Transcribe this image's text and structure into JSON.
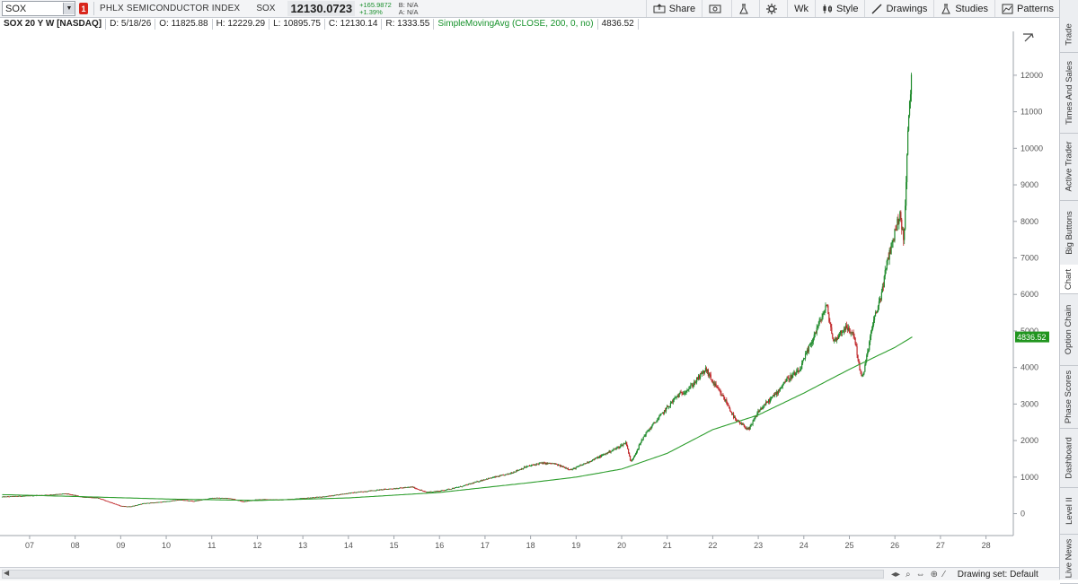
{
  "toolbar": {
    "symbol": "SOX",
    "alert_count": "1",
    "description": "PHLX SEMICONDUCTOR INDEX",
    "symbol_label": "SOX",
    "last_price": "12130.0723",
    "net_change": "+165.9872",
    "pct_change": "+1.39%",
    "bid": "B: N/A",
    "ask": "A: N/A",
    "share_label": "Share",
    "aggregation": "Wk",
    "style_label": "Style",
    "drawings_label": "Drawings",
    "studies_label": "Studies",
    "patterns_label": "Patterns"
  },
  "info_bar": {
    "title": "SOX 20 Y W [NASDAQ]",
    "date": "D: 5/18/26",
    "open": "O: 11825.88",
    "high": "H: 12229.29",
    "low": "L: 10895.75",
    "close": "C: 12130.14",
    "range": "R: 1333.55",
    "study": "SimpleMovingAvg (CLOSE, 200, 0, no)",
    "study_value": "4836.52"
  },
  "sidebar": {
    "tabs": [
      "Trade",
      "Times And Sales",
      "Active Trader",
      "Big Buttons",
      "Chart",
      "Option Chain",
      "Phase Scores",
      "Dashboard",
      "Level II",
      "Live News"
    ],
    "active": "Chart"
  },
  "bottom_bar": {
    "drawing_set": "Drawing set: Default"
  },
  "colors": {
    "up": "#1e8a2b",
    "down": "#c0282b",
    "sma": "#2e9e2e",
    "sma_label_bg": "#21951f"
  },
  "chart_data": {
    "type": "line",
    "title": "SOX 20 Y W [NASDAQ]",
    "xlabel": "",
    "ylabel": "",
    "x_tick_labels": [
      "07",
      "08",
      "09",
      "10",
      "11",
      "12",
      "13",
      "14",
      "15",
      "16",
      "17",
      "18",
      "19",
      "20",
      "21",
      "22",
      "23",
      "24",
      "25",
      "26",
      "27",
      "28"
    ],
    "x_ticks": [
      2007,
      2008,
      2009,
      2010,
      2011,
      2012,
      2013,
      2014,
      2015,
      2016,
      2017,
      2018,
      2019,
      2020,
      2021,
      2022,
      2023,
      2024,
      2025,
      2026,
      2027,
      2028
    ],
    "y_ticks": [
      0,
      1000,
      2000,
      3000,
      4000,
      5000,
      6000,
      7000,
      8000,
      9000,
      10000,
      11000,
      12000
    ],
    "xlim": [
      2006.35,
      2028.6
    ],
    "ylim": [
      -600,
      13200
    ],
    "grid": false,
    "series": [
      {
        "name": "SOX",
        "style": "candlestick-weekly",
        "points": [
          [
            2006.4,
            460
          ],
          [
            2007.0,
            490
          ],
          [
            2007.5,
            520
          ],
          [
            2007.8,
            545
          ],
          [
            2008.2,
            450
          ],
          [
            2008.5,
            430
          ],
          [
            2008.8,
            300
          ],
          [
            2009.0,
            210
          ],
          [
            2009.2,
            190
          ],
          [
            2009.5,
            280
          ],
          [
            2009.9,
            320
          ],
          [
            2010.3,
            380
          ],
          [
            2010.6,
            340
          ],
          [
            2011.0,
            430
          ],
          [
            2011.4,
            420
          ],
          [
            2011.7,
            330
          ],
          [
            2012.0,
            390
          ],
          [
            2012.5,
            380
          ],
          [
            2013.0,
            420
          ],
          [
            2013.5,
            470
          ],
          [
            2014.0,
            560
          ],
          [
            2014.5,
            630
          ],
          [
            2015.0,
            690
          ],
          [
            2015.4,
            730
          ],
          [
            2015.7,
            590
          ],
          [
            2016.0,
            620
          ],
          [
            2016.5,
            750
          ],
          [
            2017.0,
            940
          ],
          [
            2017.5,
            1080
          ],
          [
            2017.9,
            1280
          ],
          [
            2018.2,
            1380
          ],
          [
            2018.5,
            1370
          ],
          [
            2018.9,
            1200
          ],
          [
            2019.1,
            1320
          ],
          [
            2019.5,
            1550
          ],
          [
            2019.9,
            1800
          ],
          [
            2020.1,
            1950
          ],
          [
            2020.2,
            1400
          ],
          [
            2020.5,
            2150
          ],
          [
            2020.9,
            2750
          ],
          [
            2021.2,
            3200
          ],
          [
            2021.5,
            3450
          ],
          [
            2021.85,
            3950
          ],
          [
            2022.0,
            3600
          ],
          [
            2022.3,
            3050
          ],
          [
            2022.5,
            2550
          ],
          [
            2022.8,
            2300
          ],
          [
            2023.0,
            2800
          ],
          [
            2023.4,
            3300
          ],
          [
            2023.6,
            3650
          ],
          [
            2023.9,
            3900
          ],
          [
            2024.1,
            4500
          ],
          [
            2024.4,
            5400
          ],
          [
            2024.5,
            5700
          ],
          [
            2024.65,
            4700
          ],
          [
            2024.9,
            5100
          ],
          [
            2025.1,
            4900
          ],
          [
            2025.25,
            3800
          ],
          [
            2025.3,
            3750
          ],
          [
            2025.5,
            5100
          ],
          [
            2025.7,
            6000
          ],
          [
            2025.85,
            7000
          ],
          [
            2026.0,
            7700
          ],
          [
            2026.1,
            8200
          ],
          [
            2026.2,
            7500
          ],
          [
            2026.25,
            9200
          ],
          [
            2026.3,
            10900
          ],
          [
            2026.38,
            12130
          ]
        ]
      },
      {
        "name": "SimpleMovingAvg (CLOSE, 200, 0, no)",
        "points": [
          [
            2006.4,
            520
          ],
          [
            2008.0,
            470
          ],
          [
            2010.0,
            400
          ],
          [
            2012.0,
            360
          ],
          [
            2014.0,
            430
          ],
          [
            2016.0,
            580
          ],
          [
            2018.0,
            850
          ],
          [
            2019.0,
            1000
          ],
          [
            2020.0,
            1220
          ],
          [
            2021.0,
            1650
          ],
          [
            2022.0,
            2300
          ],
          [
            2023.0,
            2700
          ],
          [
            2024.0,
            3300
          ],
          [
            2025.0,
            3950
          ],
          [
            2025.5,
            4250
          ],
          [
            2026.0,
            4550
          ],
          [
            2026.38,
            4836.52
          ]
        ]
      }
    ],
    "last_value_label": "4836.52"
  }
}
